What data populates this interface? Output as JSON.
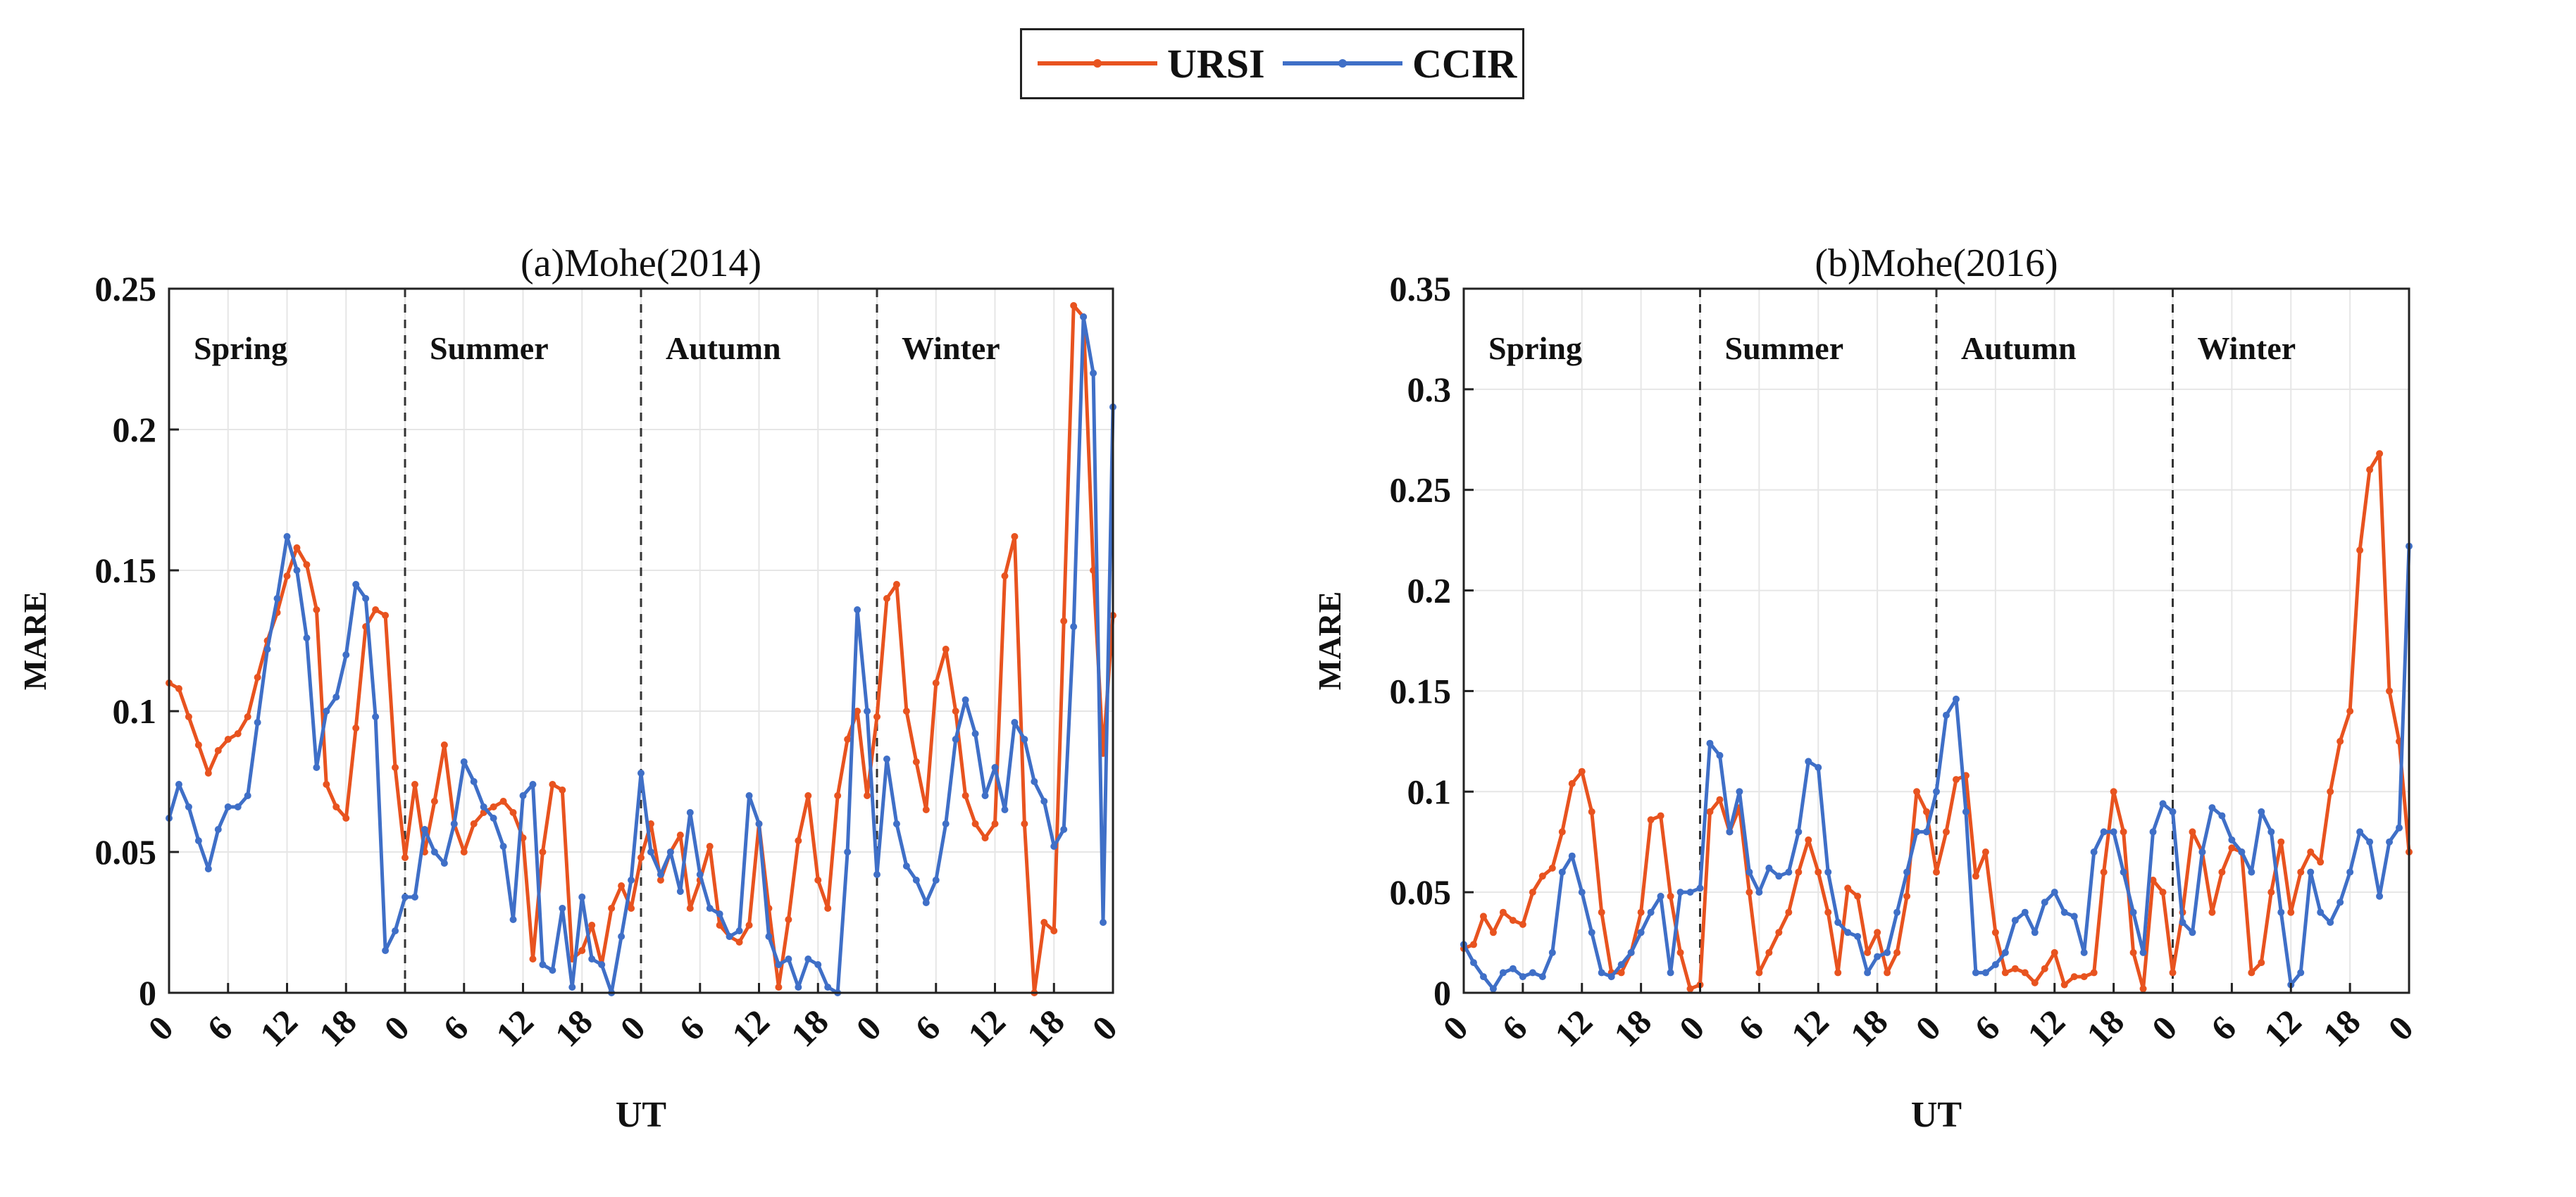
{
  "legend": {
    "series": [
      {
        "name": "URSI",
        "color": "#e8531f"
      },
      {
        "name": "CCIR",
        "color": "#3f6fc7"
      }
    ]
  },
  "chart_data": [
    {
      "type": "line",
      "title": "(a)Mohe(2014)",
      "xlabel": "UT",
      "ylabel": "MARE",
      "ylim": [
        0,
        0.25
      ],
      "yticks": [
        0,
        0.05,
        0.1,
        0.15,
        0.2,
        0.25
      ],
      "ytick_labels": [
        "0",
        "0.05",
        "0.1",
        "0.15",
        "0.2",
        "0.25"
      ],
      "xlim": [
        0,
        96
      ],
      "xticks": [
        0,
        6,
        12,
        18,
        24,
        30,
        36,
        42,
        48,
        54,
        60,
        66,
        72,
        78,
        84,
        90,
        96
      ],
      "xtick_labels": [
        "0",
        "6",
        "12",
        "18",
        "0",
        "6",
        "12",
        "18",
        "0",
        "6",
        "12",
        "18",
        "0",
        "6",
        "12",
        "18",
        "0"
      ],
      "season_dividers": [
        24,
        48,
        72
      ],
      "seasons": [
        "Spring",
        "Summer",
        "Autumn",
        "Winter"
      ],
      "grid": true,
      "series": [
        {
          "name": "URSI",
          "color": "#e8531f",
          "x": [
            0,
            1,
            2,
            3,
            4,
            5,
            6,
            7,
            8,
            9,
            10,
            11,
            12,
            13,
            14,
            15,
            16,
            17,
            18,
            19,
            20,
            21,
            22,
            23,
            24,
            25,
            26,
            27,
            28,
            29,
            30,
            31,
            32,
            33,
            34,
            35,
            36,
            37,
            38,
            39,
            40,
            41,
            42,
            43,
            44,
            45,
            46,
            47,
            48,
            49,
            50,
            51,
            52,
            53,
            54,
            55,
            56,
            57,
            58,
            59,
            60,
            61,
            62,
            63,
            64,
            65,
            66,
            67,
            68,
            69,
            70,
            71,
            72,
            73,
            74,
            75,
            76,
            77,
            78,
            79,
            80,
            81,
            82,
            83,
            84,
            85,
            86,
            87,
            88,
            89,
            90,
            91,
            92,
            93,
            94,
            95,
            96
          ],
          "values": [
            0.11,
            0.108,
            0.098,
            0.088,
            0.078,
            0.086,
            0.09,
            0.092,
            0.098,
            0.112,
            0.125,
            0.135,
            0.148,
            0.158,
            0.152,
            0.136,
            0.074,
            0.066,
            0.062,
            0.094,
            0.13,
            0.136,
            0.134,
            0.08,
            0.048,
            0.074,
            0.05,
            0.068,
            0.088,
            0.06,
            0.05,
            0.06,
            0.064,
            0.066,
            0.068,
            0.064,
            0.055,
            0.012,
            0.05,
            0.074,
            0.072,
            0.012,
            0.015,
            0.024,
            0.01,
            0.03,
            0.038,
            0.03,
            0.048,
            0.06,
            0.04,
            0.05,
            0.056,
            0.03,
            0.04,
            0.052,
            0.024,
            0.02,
            0.018,
            0.024,
            0.06,
            0.03,
            0.002,
            0.026,
            0.054,
            0.07,
            0.04,
            0.03,
            0.07,
            0.09,
            0.1,
            0.07,
            0.098,
            0.14,
            0.145,
            0.1,
            0.082,
            0.065,
            0.11,
            0.122,
            0.1,
            0.07,
            0.06,
            0.055,
            0.06,
            0.148,
            0.162,
            0.06,
            0.0,
            0.025,
            0.022,
            0.132,
            0.244,
            0.24,
            0.15,
            0.085,
            0.134
          ]
        },
        {
          "name": "CCIR",
          "color": "#3f6fc7",
          "x": [
            0,
            1,
            2,
            3,
            4,
            5,
            6,
            7,
            8,
            9,
            10,
            11,
            12,
            13,
            14,
            15,
            16,
            17,
            18,
            19,
            20,
            21,
            22,
            23,
            24,
            25,
            26,
            27,
            28,
            29,
            30,
            31,
            32,
            33,
            34,
            35,
            36,
            37,
            38,
            39,
            40,
            41,
            42,
            43,
            44,
            45,
            46,
            47,
            48,
            49,
            50,
            51,
            52,
            53,
            54,
            55,
            56,
            57,
            58,
            59,
            60,
            61,
            62,
            63,
            64,
            65,
            66,
            67,
            68,
            69,
            70,
            71,
            72,
            73,
            74,
            75,
            76,
            77,
            78,
            79,
            80,
            81,
            82,
            83,
            84,
            85,
            86,
            87,
            88,
            89,
            90,
            91,
            92,
            93,
            94,
            95,
            96
          ],
          "values": [
            0.062,
            0.074,
            0.066,
            0.054,
            0.044,
            0.058,
            0.066,
            0.066,
            0.07,
            0.096,
            0.122,
            0.14,
            0.162,
            0.15,
            0.126,
            0.08,
            0.1,
            0.105,
            0.12,
            0.145,
            0.14,
            0.098,
            0.015,
            0.022,
            0.034,
            0.034,
            0.058,
            0.05,
            0.046,
            0.06,
            0.082,
            0.075,
            0.066,
            0.062,
            0.052,
            0.026,
            0.07,
            0.074,
            0.01,
            0.008,
            0.03,
            0.002,
            0.034,
            0.012,
            0.01,
            0.0,
            0.02,
            0.04,
            0.078,
            0.05,
            0.042,
            0.05,
            0.036,
            0.064,
            0.042,
            0.03,
            0.028,
            0.02,
            0.022,
            0.07,
            0.06,
            0.02,
            0.01,
            0.012,
            0.002,
            0.012,
            0.01,
            0.002,
            0.0,
            0.05,
            0.136,
            0.1,
            0.042,
            0.083,
            0.06,
            0.045,
            0.04,
            0.032,
            0.04,
            0.06,
            0.09,
            0.104,
            0.092,
            0.07,
            0.08,
            0.065,
            0.096,
            0.09,
            0.075,
            0.068,
            0.052,
            0.058,
            0.13,
            0.24,
            0.22,
            0.025,
            0.208
          ]
        }
      ]
    },
    {
      "type": "line",
      "title": "(b)Mohe(2016)",
      "xlabel": "UT",
      "ylabel": "MARE",
      "ylim": [
        0,
        0.35
      ],
      "yticks": [
        0,
        0.05,
        0.1,
        0.15,
        0.2,
        0.25,
        0.3,
        0.35
      ],
      "ytick_labels": [
        "0",
        "0.05",
        "0.1",
        "0.15",
        "0.2",
        "0.25",
        "0.3",
        "0.35"
      ],
      "xlim": [
        0,
        96
      ],
      "xticks": [
        0,
        6,
        12,
        18,
        24,
        30,
        36,
        42,
        48,
        54,
        60,
        66,
        72,
        78,
        84,
        90,
        96
      ],
      "xtick_labels": [
        "0",
        "6",
        "12",
        "18",
        "0",
        "6",
        "12",
        "18",
        "0",
        "6",
        "12",
        "18",
        "0",
        "6",
        "12",
        "18",
        "0"
      ],
      "season_dividers": [
        24,
        48,
        72
      ],
      "seasons": [
        "Spring",
        "Summer",
        "Autumn",
        "Winter"
      ],
      "grid": true,
      "series": [
        {
          "name": "URSI",
          "color": "#e8531f",
          "x": [
            0,
            1,
            2,
            3,
            4,
            5,
            6,
            7,
            8,
            9,
            10,
            11,
            12,
            13,
            14,
            15,
            16,
            17,
            18,
            19,
            20,
            21,
            22,
            23,
            24,
            25,
            26,
            27,
            28,
            29,
            30,
            31,
            32,
            33,
            34,
            35,
            36,
            37,
            38,
            39,
            40,
            41,
            42,
            43,
            44,
            45,
            46,
            47,
            48,
            49,
            50,
            51,
            52,
            53,
            54,
            55,
            56,
            57,
            58,
            59,
            60,
            61,
            62,
            63,
            64,
            65,
            66,
            67,
            68,
            69,
            70,
            71,
            72,
            73,
            74,
            75,
            76,
            77,
            78,
            79,
            80,
            81,
            82,
            83,
            84,
            85,
            86,
            87,
            88,
            89,
            90,
            91,
            92,
            93,
            94,
            95,
            96
          ],
          "values": [
            0.022,
            0.024,
            0.038,
            0.03,
            0.04,
            0.036,
            0.034,
            0.05,
            0.058,
            0.062,
            0.08,
            0.104,
            0.11,
            0.09,
            0.04,
            0.01,
            0.01,
            0.02,
            0.04,
            0.086,
            0.088,
            0.048,
            0.02,
            0.002,
            0.004,
            0.09,
            0.096,
            0.08,
            0.092,
            0.05,
            0.01,
            0.02,
            0.03,
            0.04,
            0.06,
            0.076,
            0.06,
            0.04,
            0.01,
            0.052,
            0.048,
            0.02,
            0.03,
            0.01,
            0.02,
            0.048,
            0.1,
            0.09,
            0.06,
            0.08,
            0.106,
            0.108,
            0.058,
            0.07,
            0.03,
            0.01,
            0.012,
            0.01,
            0.005,
            0.012,
            0.02,
            0.004,
            0.008,
            0.008,
            0.01,
            0.06,
            0.1,
            0.08,
            0.02,
            0.002,
            0.056,
            0.05,
            0.01,
            0.04,
            0.08,
            0.07,
            0.04,
            0.06,
            0.072,
            0.07,
            0.01,
            0.015,
            0.05,
            0.075,
            0.04,
            0.06,
            0.07,
            0.065,
            0.1,
            0.125,
            0.14,
            0.22,
            0.26,
            0.268,
            0.15,
            0.125,
            0.07
          ]
        },
        {
          "name": "CCIR",
          "color": "#3f6fc7",
          "x": [
            0,
            1,
            2,
            3,
            4,
            5,
            6,
            7,
            8,
            9,
            10,
            11,
            12,
            13,
            14,
            15,
            16,
            17,
            18,
            19,
            20,
            21,
            22,
            23,
            24,
            25,
            26,
            27,
            28,
            29,
            30,
            31,
            32,
            33,
            34,
            35,
            36,
            37,
            38,
            39,
            40,
            41,
            42,
            43,
            44,
            45,
            46,
            47,
            48,
            49,
            50,
            51,
            52,
            53,
            54,
            55,
            56,
            57,
            58,
            59,
            60,
            61,
            62,
            63,
            64,
            65,
            66,
            67,
            68,
            69,
            70,
            71,
            72,
            73,
            74,
            75,
            76,
            77,
            78,
            79,
            80,
            81,
            82,
            83,
            84,
            85,
            86,
            87,
            88,
            89,
            90,
            91,
            92,
            93,
            94,
            95,
            96
          ],
          "values": [
            0.024,
            0.015,
            0.008,
            0.002,
            0.01,
            0.012,
            0.008,
            0.01,
            0.008,
            0.02,
            0.06,
            0.068,
            0.05,
            0.03,
            0.01,
            0.008,
            0.014,
            0.02,
            0.03,
            0.04,
            0.048,
            0.01,
            0.05,
            0.05,
            0.052,
            0.124,
            0.118,
            0.08,
            0.1,
            0.06,
            0.05,
            0.062,
            0.058,
            0.06,
            0.08,
            0.115,
            0.112,
            0.06,
            0.035,
            0.03,
            0.028,
            0.01,
            0.018,
            0.02,
            0.04,
            0.06,
            0.08,
            0.08,
            0.1,
            0.138,
            0.146,
            0.09,
            0.01,
            0.01,
            0.014,
            0.02,
            0.036,
            0.04,
            0.03,
            0.045,
            0.05,
            0.04,
            0.038,
            0.02,
            0.07,
            0.08,
            0.08,
            0.06,
            0.04,
            0.02,
            0.08,
            0.094,
            0.09,
            0.035,
            0.03,
            0.07,
            0.092,
            0.088,
            0.076,
            0.07,
            0.06,
            0.09,
            0.08,
            0.04,
            0.004,
            0.01,
            0.06,
            0.04,
            0.035,
            0.045,
            0.06,
            0.08,
            0.075,
            0.048,
            0.075,
            0.082,
            0.222
          ]
        }
      ]
    }
  ]
}
